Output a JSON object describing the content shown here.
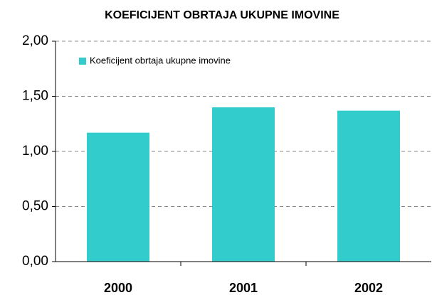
{
  "chart_data": {
    "type": "bar",
    "title": "KOEFICIJENT OBRTAJA UKUPNE IMOVINE",
    "categories": [
      "2000",
      "2001",
      "2002"
    ],
    "series": [
      {
        "name": "Koeficijent obrtaja ukupne imovine",
        "color": "#33cccc",
        "values": [
          1.17,
          1.4,
          1.37
        ]
      }
    ],
    "ylim": [
      0,
      2
    ],
    "yticks": [
      {
        "value": 0,
        "label": "0,00"
      },
      {
        "value": 0.5,
        "label": "0,50"
      },
      {
        "value": 1,
        "label": "1,00"
      },
      {
        "value": 1.5,
        "label": "1,50"
      },
      {
        "value": 2,
        "label": "2,00"
      }
    ],
    "grid": true,
    "legend": "top-left"
  }
}
